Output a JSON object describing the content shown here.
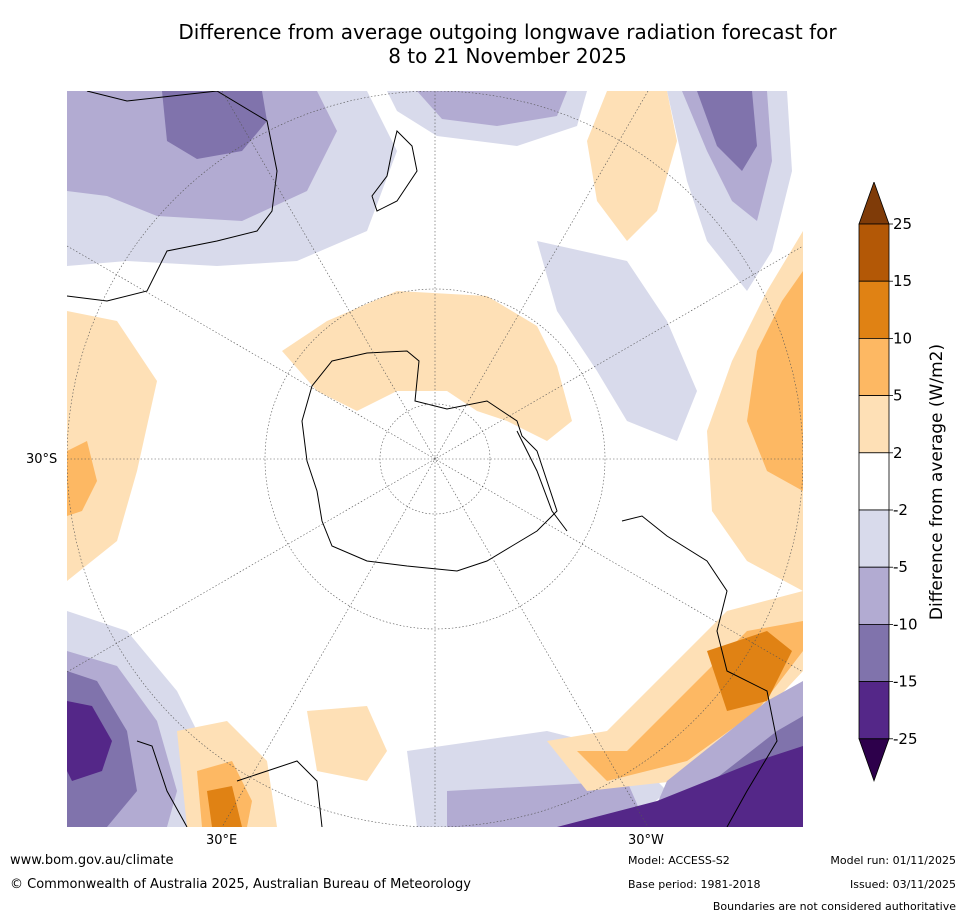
{
  "title_line1": "Difference from average outgoing longwave radiation forecast for",
  "title_line2": "8 to 21 November 2025",
  "map": {
    "projection_label": "South polar stereographic",
    "lat_label": "30°S",
    "lon_labels": [
      "30°E",
      "30°W"
    ]
  },
  "colorbar": {
    "label": "Difference from average (W/m2)",
    "ticks": [
      "25",
      "15",
      "10",
      "5",
      "2",
      "-2",
      "-5",
      "-10",
      "-15",
      "-25"
    ],
    "colors": [
      "#7f3b08",
      "#b35806",
      "#e08214",
      "#fdb863",
      "#fee0b6",
      "#ffffff",
      "#d8daeb",
      "#b2abd2",
      "#8073ac",
      "#542788",
      "#2d004b"
    ]
  },
  "footer": {
    "website": "www.bom.gov.au/climate",
    "copyright": "© Commonwealth of Australia 2025, Australian Bureau of Meteorology",
    "model": "Model: ACCESS-S2",
    "base_period": "Base period: 1981-2018",
    "model_run": "Model run: 01/11/2025",
    "issued": "Issued: 03/11/2025",
    "disclaimer": "Boundaries are not considered authoritative"
  }
}
